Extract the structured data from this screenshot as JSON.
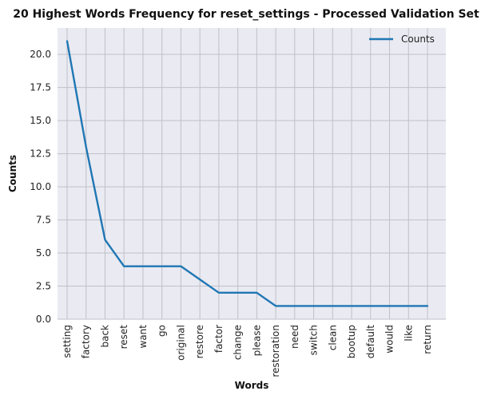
{
  "chart_data": {
    "type": "line",
    "title": "20 Highest Words Frequency for reset_settings - Processed Validation Set",
    "xlabel": "Words",
    "ylabel": "Counts",
    "categories": [
      "setting",
      "factory",
      "back",
      "reset",
      "want",
      "go",
      "original",
      "restore",
      "factor",
      "change",
      "please",
      "restoration",
      "need",
      "switch",
      "clean",
      "bootup",
      "default",
      "would",
      "like",
      "return"
    ],
    "series": [
      {
        "name": "Counts",
        "values": [
          21,
          13,
          6,
          4,
          4,
          4,
          4,
          3,
          2,
          2,
          2,
          1,
          1,
          1,
          1,
          1,
          1,
          1,
          1,
          1
        ]
      }
    ],
    "ylim": [
      0,
      22
    ],
    "yticks": [
      0.0,
      2.5,
      5.0,
      7.5,
      10.0,
      12.5,
      15.0,
      17.5,
      20.0
    ],
    "ytick_labels": [
      "0.0",
      "2.5",
      "5.0",
      "7.5",
      "10.0",
      "12.5",
      "15.0",
      "17.5",
      "20.0"
    ],
    "grid": true,
    "legend_position": "top-right",
    "colors": {
      "line": "#1f77b4",
      "plot_bg": "#eaeaf2",
      "grid": "#c0c0c8"
    }
  }
}
